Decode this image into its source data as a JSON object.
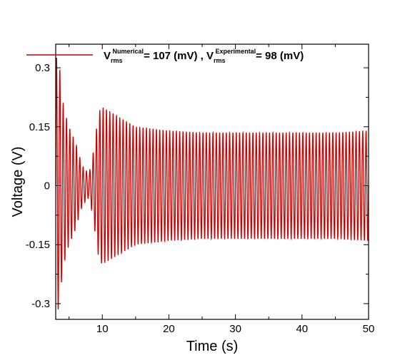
{
  "chart_data": {
    "type": "line",
    "title": "",
    "xlabel": "Time (s)",
    "ylabel": "Voltage (V)",
    "xlim": [
      3,
      50
    ],
    "ylim": [
      -0.34,
      0.36
    ],
    "x_ticks": [
      10,
      20,
      30,
      40,
      50
    ],
    "y_ticks": [
      -0.3,
      -0.15,
      0,
      0.15,
      0.3
    ],
    "x_tick_labels": [
      "10",
      "20",
      "30",
      "40",
      "50"
    ],
    "y_tick_labels": [
      "-0.3",
      "-0.15",
      "0",
      "0.15",
      "0.3"
    ],
    "grid": false,
    "legend_position": "top",
    "legend": {
      "v1": "V",
      "v1_sub": "rms",
      "v1_sup": "Numerical",
      "v1_tail": "= 107 (mV)  , V",
      "v2_sub": "rms",
      "v2_sup": "Experimental",
      "v2_tail": "= 98 (mV)"
    },
    "series": [
      {
        "color": "#cc0000",
        "oscillation_period_s": 0.5,
        "x": [
          3,
          3.3,
          3.6,
          4,
          4.5,
          5,
          6,
          7,
          8,
          8.6,
          9,
          9.5,
          10,
          12,
          14,
          15,
          20,
          25,
          30,
          35,
          40,
          45,
          50
        ],
        "envelope_amplitude": [
          0.33,
          0.32,
          0.3,
          0.22,
          0.18,
          0.15,
          0.11,
          0.05,
          0.03,
          0.08,
          0.13,
          0.19,
          0.2,
          0.18,
          0.16,
          0.15,
          0.14,
          0.135,
          0.135,
          0.135,
          0.135,
          0.135,
          0.14
        ]
      }
    ]
  }
}
